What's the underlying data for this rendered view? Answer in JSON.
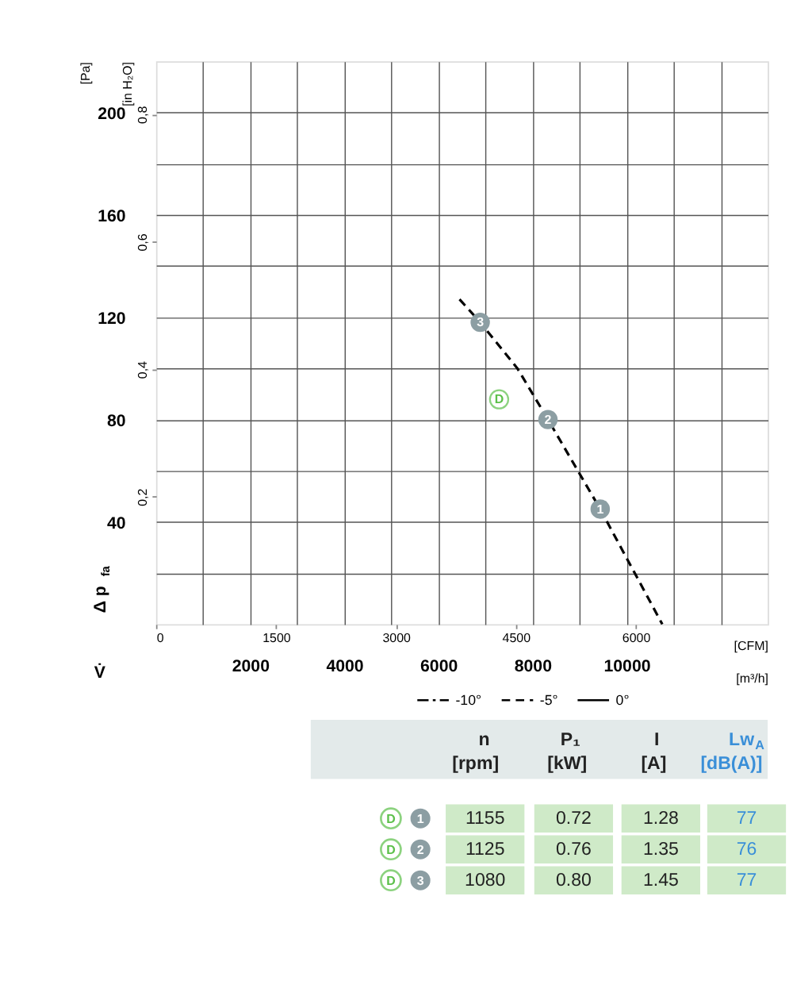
{
  "chart_data": {
    "type": "line",
    "xlabel": "[m³/h]",
    "x2label": "[CFM]",
    "ylabel": "[Pa]",
    "y2label": "[in H₂O]",
    "xlim": [
      0,
      13000
    ],
    "xticks": [
      {
        "value": 1000,
        "label": null
      },
      2000,
      {
        "value": 3000,
        "label": null
      },
      4000,
      {
        "value": 5000,
        "label": null
      },
      6000,
      {
        "value": 7000,
        "label": null
      },
      8000,
      {
        "value": 9000,
        "label": null
      },
      10000,
      {
        "value": 11000,
        "label": null
      },
      {
        "value": 12000,
        "label": null
      }
    ],
    "x2lim": [
      0,
      7651
    ],
    "x2ticks": [
      0,
      1500,
      3000,
      4500,
      6000
    ],
    "ylim": [
      0,
      220
    ],
    "yticks": [
      {
        "value": 20,
        "label": null
      },
      40,
      {
        "value": 60,
        "label": null
      },
      80,
      {
        "value": 100,
        "label": null
      },
      120,
      {
        "value": 140,
        "label": null
      },
      160,
      {
        "value": 180,
        "label": null
      },
      200
    ],
    "y2lim": [
      0,
      0.883
    ],
    "y2ticks": [
      {
        "value": 0.2,
        "label": "0,2"
      },
      {
        "value": 0.4,
        "label": "0,4"
      },
      {
        "value": 0.6,
        "label": "0,6"
      },
      {
        "value": 0.8,
        "label": "0,8"
      }
    ],
    "grid": true,
    "legend": "bottom right",
    "series": [
      {
        "name": "-10°",
        "color": "#000000",
        "line_style": "dashdot"
      },
      {
        "name": "-5°",
        "color": "#000000",
        "line_style": "dashed",
        "x": [
          6450,
          6890,
          7680,
          8330,
          9440,
          10760
        ],
        "values": [
          127,
          118,
          100,
          80,
          45,
          0
        ]
      },
      {
        "name": "0°",
        "color": "#000000",
        "line_style": "solid"
      },
      {
        "type": "scatter",
        "color": "#8c9ea3",
        "marker": "circle",
        "x": [
          9440,
          8330,
          6890
        ],
        "values": [
          45,
          80,
          118
        ]
      }
    ],
    "annotations": [
      "Δ p$_{fa}$",
      "V̇",
      {
        "text": "D",
        "x": 7650,
        "y": 100
      },
      {
        "text": "1",
        "x": 9440,
        "y": 45
      },
      {
        "text": "2",
        "x": 8330,
        "y": 80
      },
      {
        "text": "3",
        "x": 6890,
        "y": 118
      },
      "n [rpm]",
      "P₁ [kW]",
      "I [A]",
      "Lw$_{A}$ [dB(A)]",
      "D",
      "1",
      "1155",
      "0.72",
      "1.28",
      "77",
      "D",
      "2",
      "1125",
      "0.76",
      "1.35",
      "76",
      "D",
      "3",
      "1080",
      "0.80",
      "1.45",
      "77"
    ]
  }
}
